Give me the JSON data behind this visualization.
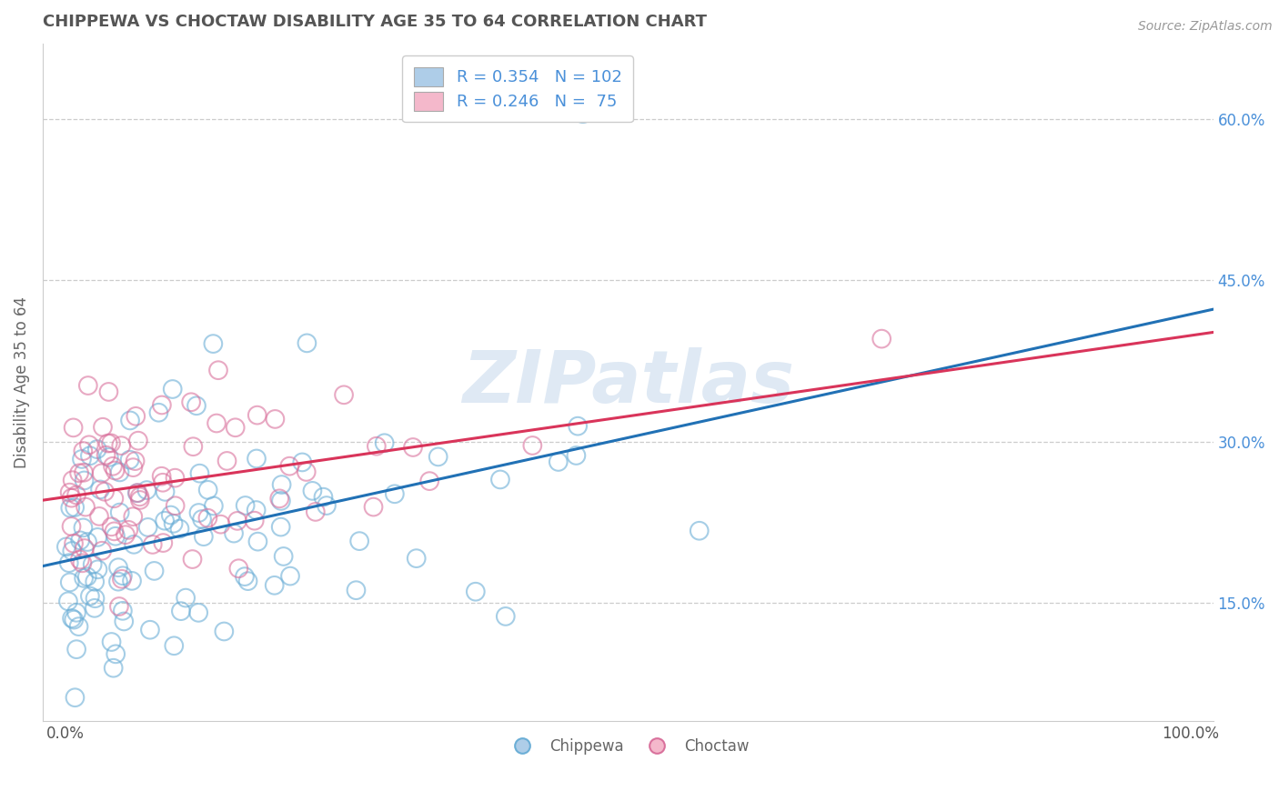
{
  "title": "CHIPPEWA VS CHOCTAW DISABILITY AGE 35 TO 64 CORRELATION CHART",
  "source_text": "Source: ZipAtlas.com",
  "ylabel": "Disability Age 35 to 64",
  "watermark": "ZIPatlas",
  "xlim": [
    -0.02,
    1.02
  ],
  "ylim": [
    0.04,
    0.67
  ],
  "xticks": [
    0.0,
    1.0
  ],
  "xticklabels": [
    "0.0%",
    "100.0%"
  ],
  "yticks": [
    0.15,
    0.3,
    0.45,
    0.6
  ],
  "yticklabels": [
    "15.0%",
    "30.0%",
    "45.0%",
    "60.0%"
  ],
  "chippewa_color": "#6baed6",
  "choctaw_color": "#d9719c",
  "chippewa_line_color": "#2171b5",
  "choctaw_line_color": "#d9345a",
  "legend_label1": "R = 0.354   N = 102",
  "legend_label2": "R = 0.246   N =  75",
  "background_color": "#ffffff",
  "grid_color": "#c0c0c0",
  "title_color": "#555555",
  "ytick_color": "#4a90d9",
  "xtick_color": "#555555"
}
